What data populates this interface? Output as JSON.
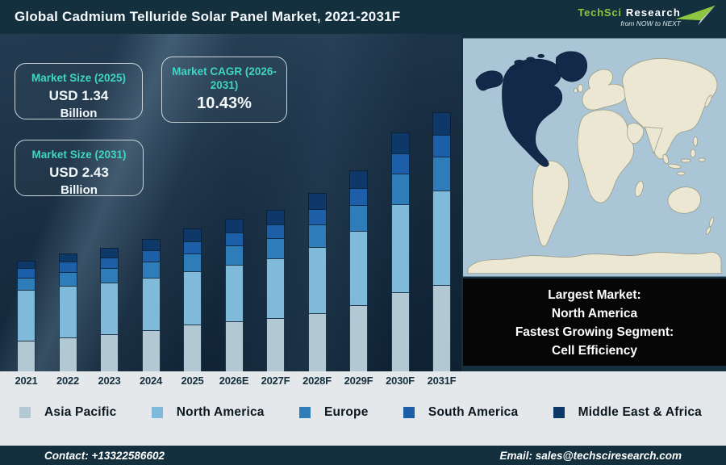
{
  "header": {
    "title": "Global Cadmium Telluride Solar Panel Market, 2021-2031F",
    "logo": {
      "name1": "TechSci",
      "name2": "Research",
      "tagline": "from NOW to NEXT",
      "brand_green": "#8dc63f"
    }
  },
  "stats": [
    {
      "label": "Market Size (2025)",
      "value": "USD 1.34",
      "unit": "Billion"
    },
    {
      "label": "Market CAGR (2026-2031)",
      "value": "10.43%"
    },
    {
      "label": "Market Size (2031)",
      "value": "USD 2.43",
      "unit": "Billion"
    }
  ],
  "chart_data": {
    "type": "bar",
    "stacked": true,
    "title": "Global Cadmium Telluride Solar Panel Market, 2021-2031F",
    "unit": "USD Billion",
    "categories": [
      "2021",
      "2022",
      "2023",
      "2024",
      "2025",
      "2026E",
      "2027F",
      "2028F",
      "2029F",
      "2030F",
      "2031F"
    ],
    "totals": [
      1.04,
      1.1,
      1.16,
      1.24,
      1.34,
      1.43,
      1.52,
      1.67,
      1.89,
      2.24,
      2.43
    ],
    "series": [
      {
        "name": "Asia Pacific",
        "color": "#b2c9d4",
        "values": [
          0.289,
          0.319,
          0.35,
          0.389,
          0.436,
          0.466,
          0.497,
          0.548,
          0.624,
          0.741,
          0.807
        ]
      },
      {
        "name": "North America",
        "color": "#7fbada",
        "values": [
          0.477,
          0.484,
          0.485,
          0.49,
          0.5,
          0.532,
          0.564,
          0.618,
          0.696,
          0.822,
          0.889
        ]
      },
      {
        "name": "Europe",
        "color": "#2e7cb8",
        "values": [
          0.115,
          0.125,
          0.136,
          0.15,
          0.166,
          0.179,
          0.192,
          0.214,
          0.244,
          0.291,
          0.321
        ]
      },
      {
        "name": "South America",
        "color": "#1c5fa8",
        "values": [
          0.089,
          0.095,
          0.1,
          0.107,
          0.115,
          0.122,
          0.129,
          0.141,
          0.159,
          0.187,
          0.202
        ]
      },
      {
        "name": "Middle East & Africa",
        "color": "#0d3867",
        "values": [
          0.069,
          0.079,
          0.09,
          0.105,
          0.123,
          0.13,
          0.137,
          0.15,
          0.166,
          0.195,
          0.209
        ]
      }
    ],
    "ylim": [
      0,
      2.6
    ],
    "grid": false,
    "legend_position": "bottom"
  },
  "map": {
    "ocean_color": "#a9c5d6",
    "land_color": "#ece7d2",
    "highlight_color": "#13294a",
    "highlight_region": "North America"
  },
  "callout": {
    "lines": [
      "Largest Market:",
      "North America",
      "Fastest Growing Segment:",
      "Cell Efficiency"
    ]
  },
  "footer": {
    "contact": "Contact: +13322586602",
    "email": "Email: sales@techsciresearch.com"
  }
}
